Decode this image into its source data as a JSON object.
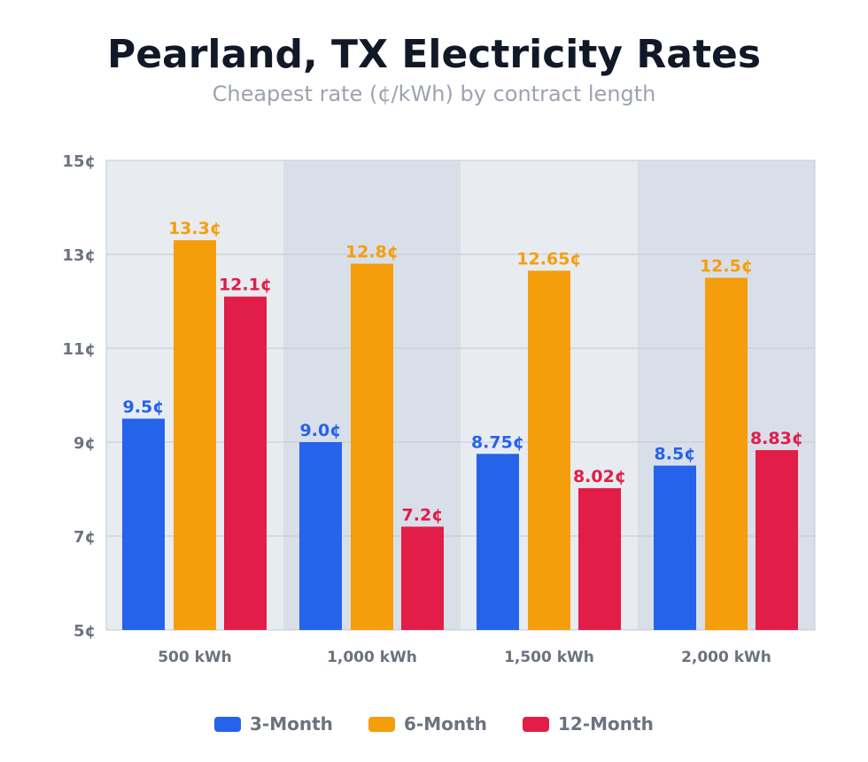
{
  "chart_data": {
    "type": "bar",
    "title": "Pearland, TX Electricity Rates",
    "subtitle": "Cheapest rate (¢/kWh) by contract length",
    "xlabel": "",
    "ylabel": "",
    "categories": [
      "500 kWh",
      "1,000 kWh",
      "1,500 kWh",
      "2,000 kWh"
    ],
    "series": [
      {
        "name": "3-Month",
        "color": "#2563eb",
        "values": [
          9.5,
          9.0,
          8.75,
          8.5
        ],
        "labels": [
          "9.5¢",
          "9.0¢",
          "8.75¢",
          "8.5¢"
        ]
      },
      {
        "name": "6-Month",
        "color": "#f59e0b",
        "values": [
          13.3,
          12.8,
          12.65,
          12.5
        ],
        "labels": [
          "13.3¢",
          "12.8¢",
          "12.65¢",
          "12.5¢"
        ]
      },
      {
        "name": "12-Month",
        "color": "#e11d48",
        "values": [
          12.1,
          7.2,
          8.02,
          8.83
        ],
        "labels": [
          "12.1¢",
          "7.2¢",
          "8.02¢",
          "8.83¢"
        ]
      }
    ],
    "ylim": [
      5,
      15
    ],
    "yticks": [
      5,
      7,
      9,
      11,
      13,
      15
    ],
    "ytick_labels": [
      "5¢",
      "7¢",
      "9¢",
      "11¢",
      "13¢",
      "15¢"
    ],
    "grid": true,
    "legend": "bottom",
    "band_colors": [
      "#e8ebf0",
      "#d9dfe8"
    ]
  }
}
